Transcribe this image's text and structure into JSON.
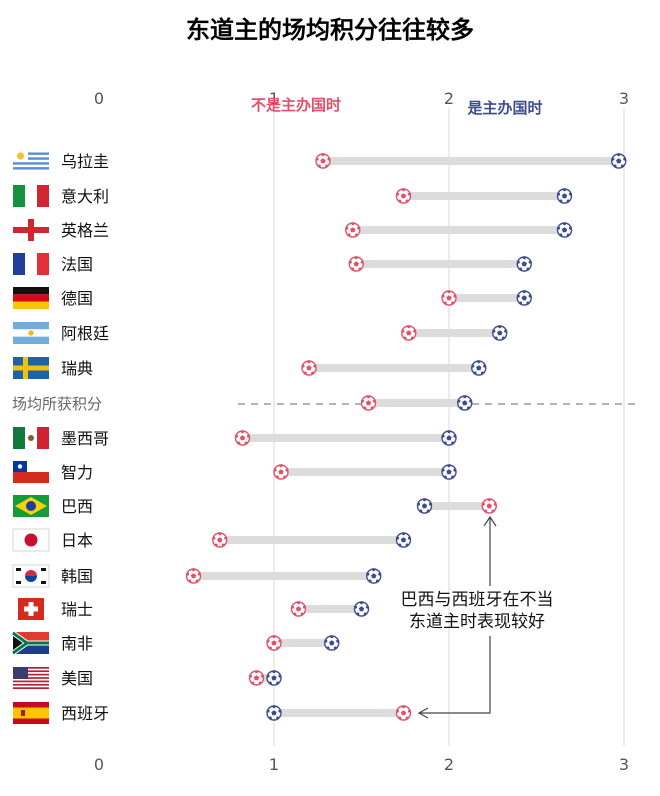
{
  "colors": {
    "away": "#e2506a",
    "home": "#3e4b8f",
    "connector": "#dcdcdc",
    "gridline": "#d9d9d9",
    "divider": "#888888"
  },
  "chart_data": {
    "type": "dumbbell",
    "title": "东道主的场均积分往往较多",
    "xlim": [
      0,
      3
    ],
    "x_ticks": [
      "0",
      "1",
      "2",
      "3"
    ],
    "series": [
      {
        "name": "不是主办国时",
        "color": "#e2506a"
      },
      {
        "name": "是主办国时",
        "color": "#3e4b8f"
      }
    ],
    "divider_label": "场均所获积分",
    "rows": [
      {
        "country": "乌拉圭",
        "flag": "uruguay",
        "away": 1.28,
        "home": 2.97
      },
      {
        "country": "意大利",
        "flag": "italy",
        "away": 1.74,
        "home": 2.66
      },
      {
        "country": "英格兰",
        "flag": "england",
        "away": 1.45,
        "home": 2.66
      },
      {
        "country": "法国",
        "flag": "france",
        "away": 1.47,
        "home": 2.43
      },
      {
        "country": "德国",
        "flag": "germany",
        "away": 2.0,
        "home": 2.43
      },
      {
        "country": "阿根廷",
        "flag": "argentina",
        "away": 1.77,
        "home": 2.29
      },
      {
        "country": "瑞典",
        "flag": "sweden",
        "away": 1.2,
        "home": 2.17
      },
      {
        "country": "",
        "flag": "",
        "away": 1.54,
        "home": 2.09
      },
      {
        "country": "墨西哥",
        "flag": "mexico",
        "away": 0.82,
        "home": 2.0
      },
      {
        "country": "智力",
        "flag": "chile",
        "away": 1.04,
        "home": 2.0
      },
      {
        "country": "巴西",
        "flag": "brazil",
        "away": 2.23,
        "home": 1.86
      },
      {
        "country": "日本",
        "flag": "japan",
        "away": 0.69,
        "home": 1.74
      },
      {
        "country": "韩国",
        "flag": "korea",
        "away": 0.54,
        "home": 1.57
      },
      {
        "country": "瑞士",
        "flag": "switzerland",
        "away": 1.14,
        "home": 1.5
      },
      {
        "country": "南非",
        "flag": "southafrica",
        "away": 1.0,
        "home": 1.33
      },
      {
        "country": "美国",
        "flag": "usa",
        "away": 0.9,
        "home": 1.0
      },
      {
        "country": "西班牙",
        "flag": "spain",
        "away": 1.74,
        "home": 1.0
      }
    ],
    "annotation": [
      "巴西与西班牙在不当",
      "东道主时表现较好"
    ]
  }
}
